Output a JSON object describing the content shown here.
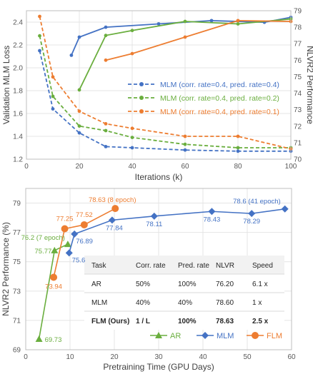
{
  "chart_data": [
    {
      "type": "line",
      "xlabel": "Iterations (k)",
      "ylabel": "Validation MLM Loss",
      "ylabel_right": "NLVR2 Performance",
      "xlim": [
        0,
        100
      ],
      "ylim": [
        1.2,
        2.5
      ],
      "ylim_right": [
        70,
        79
      ],
      "x_ticks": [
        "0",
        "20",
        "40",
        "60",
        "80",
        "100"
      ],
      "y_ticks": [
        "1.2",
        "1.4",
        "1.6",
        "1.8",
        "2.0",
        "2.2",
        "2.4"
      ],
      "y_ticks_right": [
        "70",
        "71",
        "72",
        "73",
        "74",
        "75",
        "76",
        "77",
        "78",
        "79"
      ],
      "grid": true,
      "legend_position": "center-right",
      "series": [
        {
          "name": "MLM (corr. rate=0.4, pred. rate=0.4)",
          "color": "#4472c4",
          "axis": "left",
          "style": "dashed",
          "x": [
            5,
            10,
            20,
            30,
            40,
            60,
            80,
            100
          ],
          "y": [
            2.15,
            1.64,
            1.43,
            1.31,
            1.3,
            1.28,
            1.27,
            1.27
          ]
        },
        {
          "name": "MLM (corr. rate=0.4, pred. rate=0.2)",
          "color": "#6aae3e",
          "axis": "left",
          "style": "dashed",
          "x": [
            5,
            10,
            20,
            30,
            40,
            60,
            80,
            100
          ],
          "y": [
            2.28,
            1.75,
            1.49,
            1.45,
            1.39,
            1.33,
            1.3,
            1.3
          ]
        },
        {
          "name": "MLM (corr. rate=0.4, pred. rate=0.1)",
          "color": "#ed7d31",
          "axis": "left",
          "style": "dashed",
          "x": [
            5,
            10,
            20,
            30,
            40,
            60,
            80,
            100
          ],
          "y": [
            2.45,
            1.92,
            1.62,
            1.51,
            1.47,
            1.4,
            1.4,
            1.29
          ]
        },
        {
          "name": "",
          "color": "#4472c4",
          "axis": "right",
          "style": "solid",
          "x": [
            17,
            20,
            30,
            50,
            70,
            90,
            100
          ],
          "y": [
            76.3,
            77.4,
            78.0,
            78.2,
            78.4,
            78.3,
            78.6
          ]
        },
        {
          "name": "",
          "color": "#6aae3e",
          "axis": "right",
          "style": "solid",
          "x": [
            20,
            30,
            40,
            60,
            80,
            100
          ],
          "y": [
            74.2,
            77.5,
            77.8,
            78.35,
            78.2,
            78.5
          ]
        },
        {
          "name": "",
          "color": "#ed7d31",
          "axis": "right",
          "style": "solid",
          "x": [
            30,
            40,
            60,
            80,
            100
          ],
          "y": [
            76.0,
            76.4,
            77.4,
            78.4,
            78.35
          ]
        }
      ]
    },
    {
      "type": "line",
      "xlabel": "Pretraining Time (GPU Days)",
      "ylabel": "NLVR2 Performance (%)",
      "xlim": [
        0,
        60
      ],
      "ylim": [
        69,
        80
      ],
      "x_ticks": [
        "0",
        "10",
        "20",
        "30",
        "40",
        "50",
        "60"
      ],
      "y_ticks": [
        "69",
        "71",
        "73",
        "75",
        "77",
        "79"
      ],
      "grid": true,
      "legend_position": "bottom-center",
      "series": [
        {
          "name": "AR",
          "color": "#6aae3e",
          "marker": "triangle",
          "x": [
            3,
            6.5,
            9.5
          ],
          "y": [
            69.73,
            75.77,
            76.2
          ],
          "labels": [
            "69.73",
            "75.77",
            "76.2 (7 epoch)"
          ]
        },
        {
          "name": "MLM",
          "color": "#4472c4",
          "marker": "diamond",
          "x": [
            9.8,
            11,
            19.5,
            29,
            42,
            51,
            58.5
          ],
          "y": [
            75.6,
            76.89,
            77.84,
            78.11,
            78.43,
            78.29,
            78.6
          ],
          "labels": [
            "75.6",
            "76.89",
            "77.84",
            "78.11",
            "78.43",
            "78.29",
            "78.6 (41 epoch)"
          ]
        },
        {
          "name": "FLM",
          "color": "#ed7d31",
          "marker": "circle",
          "x": [
            6.3,
            8.8,
            13.2,
            20.2
          ],
          "y": [
            73.94,
            77.25,
            77.52,
            78.63
          ],
          "labels": [
            "73.94",
            "77.25",
            "77.52",
            "78.63 (8 epoch)"
          ]
        }
      ],
      "table": {
        "headers": [
          "Task",
          "Corr. rate",
          "Pred. rate",
          "NLVR",
          "Speed"
        ],
        "rows": [
          [
            "AR",
            "50%",
            "100%",
            "76.20",
            "6.1 x"
          ],
          [
            "MLM",
            "40%",
            "40%",
            "78.60",
            "1 x"
          ],
          [
            "FLM (Ours)",
            "1 / L",
            "100%",
            "78.63",
            "2.5 x"
          ]
        ]
      }
    }
  ]
}
